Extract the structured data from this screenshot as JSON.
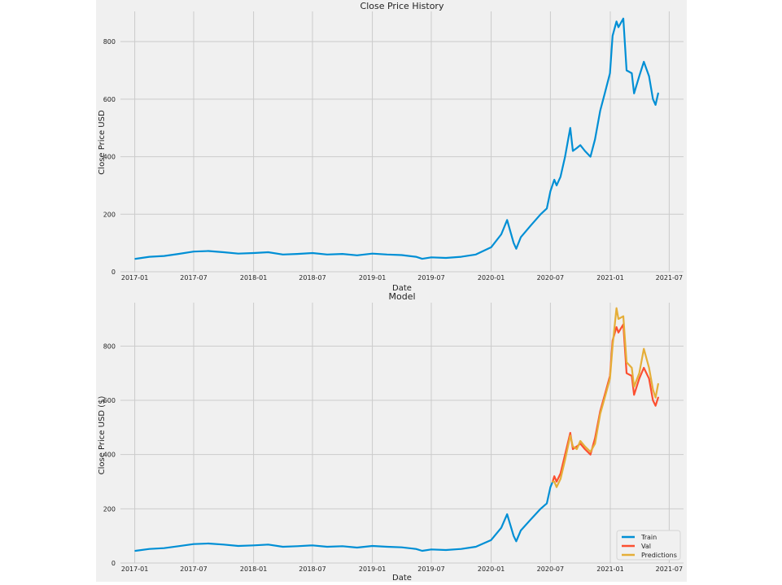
{
  "chart_data": [
    {
      "type": "line",
      "title": "Close Price History",
      "xlabel": "Date",
      "ylabel": "Close Price USD",
      "x_ticks": [
        "2017-01",
        "2017-07",
        "2018-01",
        "2018-07",
        "2019-01",
        "2019-07",
        "2020-01",
        "2020-07",
        "2021-01",
        "2021-07"
      ],
      "xlim": [
        "2016-11-18",
        "2021-08-14"
      ],
      "y_ticks": [
        0,
        200,
        400,
        600,
        800
      ],
      "ylim": [
        0,
        905
      ],
      "grid": true,
      "colors": {
        "line": "#008fd5",
        "background": "#f0f0f0",
        "grid": "#cbcbcb"
      },
      "series": [
        {
          "x": [
            "2017-01-03",
            "2017-02-15",
            "2017-04-01",
            "2017-05-15",
            "2017-07-01",
            "2017-08-15",
            "2017-10-01",
            "2017-11-15",
            "2018-01-01",
            "2018-02-15",
            "2018-04-01",
            "2018-05-15",
            "2018-07-01",
            "2018-08-15",
            "2018-10-01",
            "2018-11-15",
            "2019-01-01",
            "2019-02-15",
            "2019-04-01",
            "2019-05-15",
            "2019-06-03",
            "2019-07-01",
            "2019-08-15",
            "2019-10-01",
            "2019-11-15",
            "2020-01-01",
            "2020-02-01",
            "2020-02-19",
            "2020-03-10",
            "2020-03-18",
            "2020-04-01",
            "2020-05-01",
            "2020-06-01",
            "2020-06-20",
            "2020-07-01",
            "2020-07-13",
            "2020-07-20",
            "2020-08-01",
            "2020-08-15",
            "2020-08-31",
            "2020-09-08",
            "2020-09-20",
            "2020-10-01",
            "2020-10-15",
            "2020-11-01",
            "2020-11-15",
            "2020-12-01",
            "2020-12-15",
            "2020-12-31",
            "2021-01-08",
            "2021-01-20",
            "2021-01-26",
            "2021-02-10",
            "2021-02-20",
            "2021-03-08",
            "2021-03-15",
            "2021-03-31",
            "2021-04-14",
            "2021-04-30",
            "2021-05-12",
            "2021-05-20",
            "2021-05-28"
          ],
          "y": [
            45,
            52,
            55,
            62,
            70,
            72,
            68,
            63,
            65,
            68,
            60,
            62,
            65,
            60,
            62,
            57,
            63,
            60,
            58,
            52,
            45,
            50,
            48,
            52,
            60,
            85,
            130,
            180,
            100,
            80,
            120,
            160,
            200,
            220,
            280,
            320,
            300,
            330,
            400,
            500,
            420,
            430,
            440,
            420,
            400,
            460,
            560,
            620,
            690,
            820,
            870,
            850,
            880,
            700,
            690,
            620,
            680,
            730,
            680,
            600,
            580,
            620
          ]
        }
      ]
    },
    {
      "type": "line",
      "title": "Model",
      "xlabel": "Date",
      "ylabel": "Close Price USD ($)",
      "x_ticks": [
        "2017-01",
        "2017-07",
        "2018-01",
        "2018-07",
        "2019-01",
        "2019-07",
        "2020-01",
        "2020-07",
        "2021-01",
        "2021-07"
      ],
      "xlim": [
        "2016-11-18",
        "2021-08-14"
      ],
      "y_ticks": [
        0,
        200,
        400,
        600,
        800
      ],
      "ylim": [
        0,
        960
      ],
      "grid": true,
      "legend_position": "bottom-right",
      "colors": {
        "background": "#f0f0f0",
        "grid": "#cbcbcb"
      },
      "series": [
        {
          "name": "Train",
          "color": "#008fd5",
          "x": [
            "2017-01-03",
            "2017-02-15",
            "2017-04-01",
            "2017-05-15",
            "2017-07-01",
            "2017-08-15",
            "2017-10-01",
            "2017-11-15",
            "2018-01-01",
            "2018-02-15",
            "2018-04-01",
            "2018-05-15",
            "2018-07-01",
            "2018-08-15",
            "2018-10-01",
            "2018-11-15",
            "2019-01-01",
            "2019-02-15",
            "2019-04-01",
            "2019-05-15",
            "2019-06-03",
            "2019-07-01",
            "2019-08-15",
            "2019-10-01",
            "2019-11-15",
            "2020-01-01",
            "2020-02-01",
            "2020-02-19",
            "2020-03-10",
            "2020-03-18",
            "2020-04-01",
            "2020-05-01",
            "2020-06-01",
            "2020-06-20",
            "2020-07-01",
            "2020-07-08"
          ],
          "y": [
            45,
            52,
            55,
            62,
            70,
            72,
            68,
            63,
            65,
            68,
            60,
            62,
            65,
            60,
            62,
            57,
            63,
            60,
            58,
            52,
            45,
            50,
            48,
            52,
            60,
            85,
            130,
            180,
            100,
            80,
            120,
            160,
            200,
            220,
            280,
            300
          ]
        },
        {
          "name": "Val",
          "color": "#fc4f30",
          "x": [
            "2020-07-08",
            "2020-07-13",
            "2020-07-20",
            "2020-08-01",
            "2020-08-15",
            "2020-08-31",
            "2020-09-08",
            "2020-09-20",
            "2020-10-01",
            "2020-10-15",
            "2020-11-01",
            "2020-11-15",
            "2020-12-01",
            "2020-12-15",
            "2020-12-31",
            "2021-01-08",
            "2021-01-20",
            "2021-01-26",
            "2021-02-10",
            "2021-02-20",
            "2021-03-08",
            "2021-03-15",
            "2021-03-31",
            "2021-04-14",
            "2021-04-30",
            "2021-05-12",
            "2021-05-20",
            "2021-05-28"
          ],
          "y": [
            300,
            320,
            300,
            330,
            400,
            480,
            420,
            430,
            440,
            420,
            400,
            460,
            560,
            620,
            690,
            820,
            870,
            850,
            880,
            700,
            690,
            620,
            680,
            720,
            680,
            600,
            580,
            610
          ]
        },
        {
          "name": "Predictions",
          "color": "#e5ae38",
          "x": [
            "2020-07-08",
            "2020-07-13",
            "2020-07-20",
            "2020-08-01",
            "2020-08-15",
            "2020-08-31",
            "2020-09-08",
            "2020-09-20",
            "2020-10-01",
            "2020-10-15",
            "2020-11-01",
            "2020-11-15",
            "2020-12-01",
            "2020-12-15",
            "2020-12-31",
            "2021-01-08",
            "2021-01-20",
            "2021-01-26",
            "2021-02-10",
            "2021-02-20",
            "2021-03-08",
            "2021-03-15",
            "2021-03-31",
            "2021-04-14",
            "2021-04-30",
            "2021-05-12",
            "2021-05-20",
            "2021-05-28"
          ],
          "y": [
            300,
            300,
            280,
            310,
            380,
            470,
            430,
            420,
            450,
            430,
            410,
            440,
            550,
            610,
            680,
            800,
            940,
            900,
            910,
            740,
            720,
            650,
            700,
            790,
            720,
            640,
            610,
            660
          ]
        }
      ]
    }
  ]
}
